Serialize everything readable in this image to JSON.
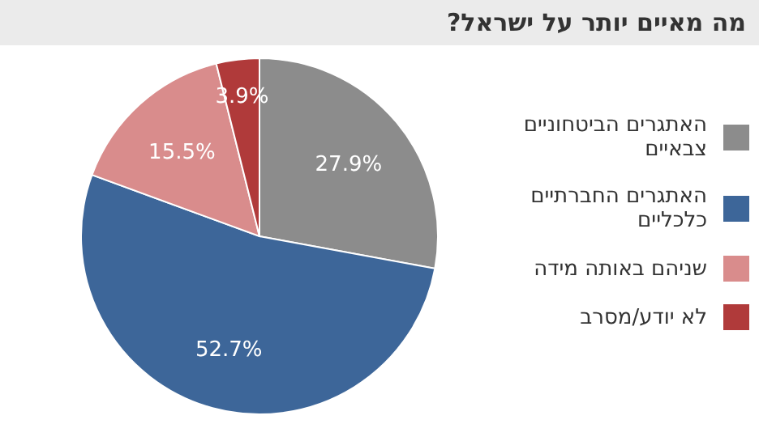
{
  "chart_data": {
    "type": "pie",
    "title": "מה מאיים יותר על ישראל?",
    "categories": [
      "האתגרים הביטחוניים צבאיים",
      "האתגרים החברתיים כלכליים",
      "שניהם באותה מידה",
      "לא יודע/מסרב"
    ],
    "values": [
      27.9,
      52.7,
      15.5,
      3.9
    ],
    "value_labels": [
      "27.9%",
      "52.7%",
      "15.5%",
      "3.9%"
    ],
    "colors": [
      "#8c8c8c",
      "#3d6699",
      "#d98c8c",
      "#b03a3a"
    ],
    "legend": "right"
  }
}
